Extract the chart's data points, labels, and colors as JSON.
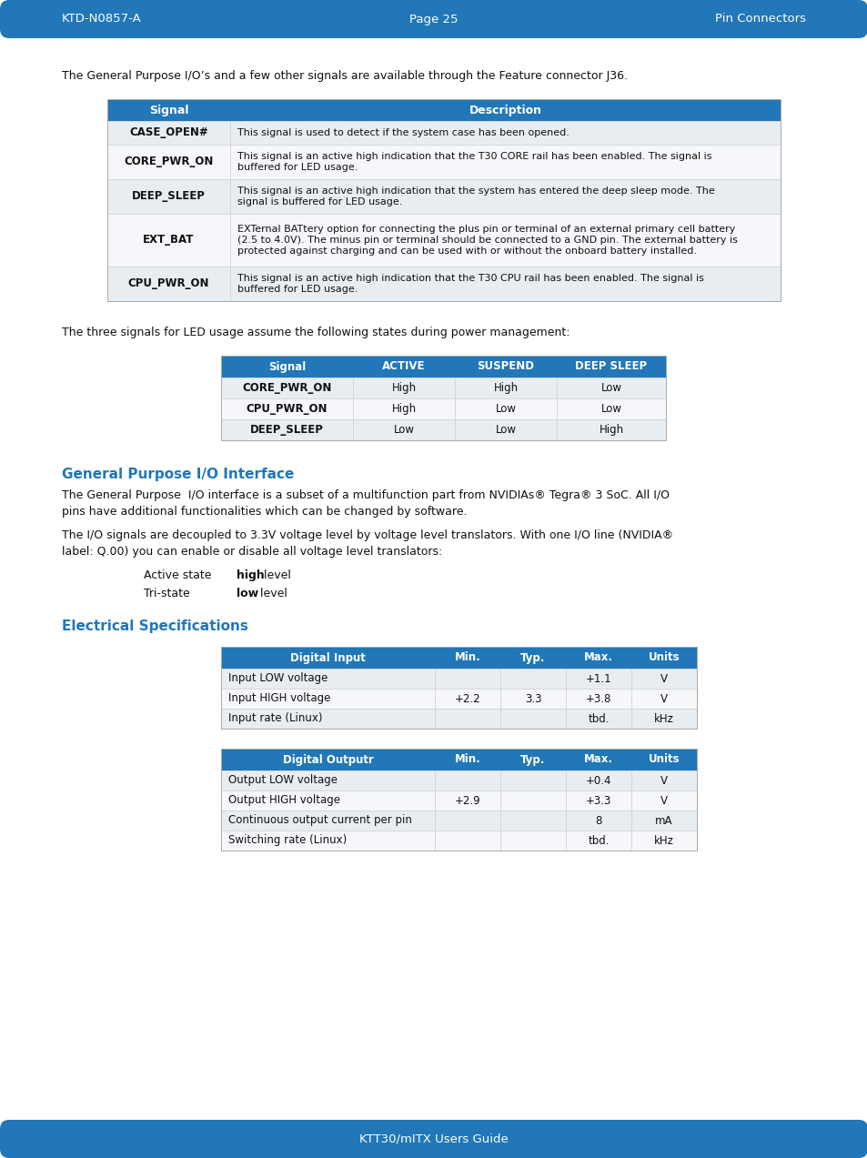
{
  "header_bg": "#2177b8",
  "page_bg": "#ffffff",
  "header_left": "KTD-N0857-A",
  "header_center": "Page 25",
  "header_right": "Pin Connectors",
  "footer_text": "KTT30/mITX Users Guide",
  "intro_text": "The General Purpose I/O’s and a few other signals are available through the Feature connector J36.",
  "mid_text": "The three signals for LED usage assume the following states during power management:",
  "section_title": "General Purpose I/O Interface",
  "section_color": "#2177b8",
  "para1a": "The General Purpose  I/O interface is a subset of a multifunction part from NVIDIAs",
  "para1b": " 3 SoC. All I/O",
  "para1c": "pins have additional functionalities which can be changed by software.",
  "para2a": "The I/O signals are decoupled to 3.3V voltage level by voltage level translators. With one I/O line (NVIDIA",
  "para2b": "",
  "para2c": "label: Q.00) you can enable or disable all voltage level translators:",
  "active_state_label": "Active state",
  "active_state_value": "high",
  "active_state_rest": " level",
  "tri_state_label": "Tri-state",
  "tri_state_value": "low",
  "tri_state_rest": " level",
  "elec_title": "Electrical Specifications",
  "table1_rows": [
    [
      "CASE_OPEN#",
      "This signal is used to detect if the system case has been opened."
    ],
    [
      "CORE_PWR_ON",
      "This signal is an active high indication that the T30 CORE rail has been enabled. The signal is\nbuffered for LED usage."
    ],
    [
      "DEEP_SLEEP",
      "This signal is an active high indication that the system has entered the deep sleep mode. The\nsignal is buffered for LED usage."
    ],
    [
      "EXT_BAT",
      "EXTernal BATtery option for connecting the plus pin or terminal of an external primary cell battery\n(2.5 to 4.0V). The minus pin or terminal should be connected to a GND pin. The external battery is\nprotected against charging and can be used with or without the onboard battery installed."
    ],
    [
      "CPU_PWR_ON",
      "This signal is an active high indication that the T30 CPU rail has been enabled. The signal is\nbuffered for LED usage."
    ]
  ],
  "table2_rows": [
    [
      "CORE_PWR_ON",
      "High",
      "High",
      "Low"
    ],
    [
      "CPU_PWR_ON",
      "High",
      "Low",
      "Low"
    ],
    [
      "DEEP_SLEEP",
      "Low",
      "Low",
      "High"
    ]
  ],
  "table3_rows": [
    [
      "Input LOW voltage",
      "",
      "",
      "+1.1",
      "V"
    ],
    [
      "Input HIGH voltage",
      "+2.2",
      "3.3",
      "+3.8",
      "V"
    ],
    [
      "Input rate (Linux)",
      "",
      "",
      "tbd.",
      "kHz"
    ]
  ],
  "table4_rows": [
    [
      "Output LOW voltage",
      "",
      "",
      "+0.4",
      "V"
    ],
    [
      "Output HIGH voltage",
      "+2.9",
      "",
      "+3.3",
      "V"
    ],
    [
      "Continuous output current per pin",
      "",
      "",
      "8",
      "mA"
    ],
    [
      "Switching rate (Linux)",
      "",
      "",
      "tbd.",
      "kHz"
    ]
  ]
}
